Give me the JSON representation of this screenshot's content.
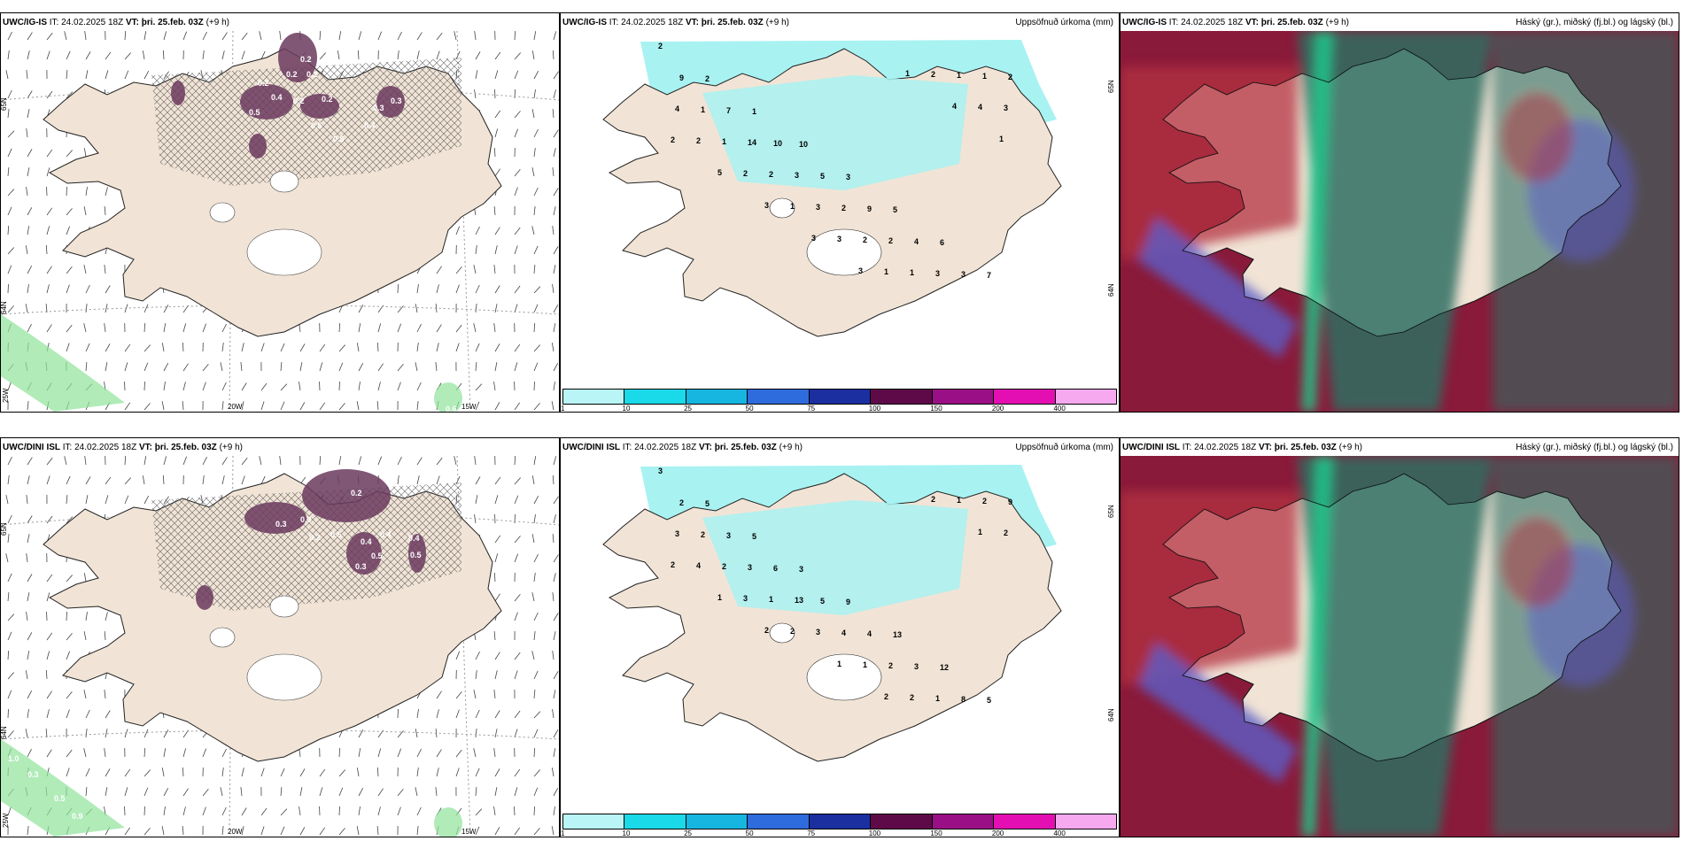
{
  "colors": {
    "land": "#f1e4d6",
    "coast": "#222222",
    "cyan": "#a8f2f2",
    "purple": "#6b3a5e",
    "magenta": "#e45ad2",
    "green": "#8fe39a",
    "cloud_red": "#b33040",
    "cloud_teal": "#2e6e62",
    "cloud_blue": "#5c5fc8",
    "cloud_maroon": "#8a1a3a",
    "cloud_green": "#24c28a"
  },
  "rows": [
    {
      "model": "UWC/IG-IS",
      "it": "IT: 24.02.2025 18Z",
      "vt_label": "VT:",
      "vt": "þri. 25.feb. 03Z",
      "lead": "(+9 h)",
      "wind_values": [
        "0.2",
        "0.2",
        "0.2",
        "0.4",
        "0.2",
        "0.2",
        "0.2",
        "0.5",
        "0.5",
        "0.4",
        "0.3",
        "0.5",
        "0.3",
        "0.9",
        "0.6"
      ],
      "precip_values": [
        "2",
        "2",
        "1",
        "10",
        "3",
        "5",
        "6",
        "7",
        "9",
        "7",
        "10",
        "5",
        "9",
        "4",
        "3",
        "2",
        "1",
        "14",
        "3",
        "2",
        "2",
        "3",
        "1",
        "4",
        "1",
        "2",
        "3",
        "2",
        "1",
        "1",
        "3",
        "2",
        "2",
        "1",
        "3",
        "1",
        "2",
        "4",
        "2",
        "5",
        "3",
        "3",
        "3",
        "1",
        "4",
        "1"
      ],
      "axis": {
        "lat1": "65N",
        "lat2": "64N",
        "lon1": "20W",
        "lon2": "15W",
        "lon0": "25W"
      }
    },
    {
      "model": "UWC/DINI ISL",
      "it": "IT: 24.02.2025 18Z",
      "vt_label": "VT:",
      "vt": "þri. 25.feb. 03Z",
      "lead": "(+9 h)",
      "wind_values": [
        "0.2",
        "0.2",
        "0.3",
        "0.4",
        "0.3",
        "0.5",
        "0.5",
        "0.4",
        "0.5",
        "0.4",
        "0.3",
        "1.0",
        "0.3",
        "0.5",
        "0.9"
      ],
      "precip_values": [
        "3",
        "5",
        "5",
        "3",
        "9",
        "13",
        "12",
        "5",
        "2",
        "3",
        "6",
        "5",
        "4",
        "3",
        "8",
        "9",
        "2",
        "3",
        "13",
        "4",
        "2",
        "1",
        "2",
        "3",
        "2",
        "1",
        "3",
        "1",
        "2",
        "1",
        "2",
        "4",
        "3",
        "2",
        "1",
        "2",
        "2",
        "1",
        "2",
        "1",
        "2"
      ],
      "axis": {
        "lat1": "65N",
        "lat2": "64N",
        "lon1": "20W",
        "lon2": "15W",
        "lon0": "25W"
      }
    }
  ],
  "precip_title": "Uppsöfnuð úrkoma (mm)",
  "cloud_title": "Háský (gr.), miðský (fj.bl.) og lágský (bl.)",
  "legend": {
    "ticks": [
      "1",
      "10",
      "25",
      "50",
      "75",
      "100",
      "150",
      "200",
      "400"
    ],
    "colors": [
      "#b9f5f7",
      "#1ad9e8",
      "#16b6e0",
      "#2e6bdc",
      "#1b2fa0",
      "#5e0a48",
      "#9a0f86",
      "#e30fb2",
      "#f7a9ef"
    ]
  }
}
